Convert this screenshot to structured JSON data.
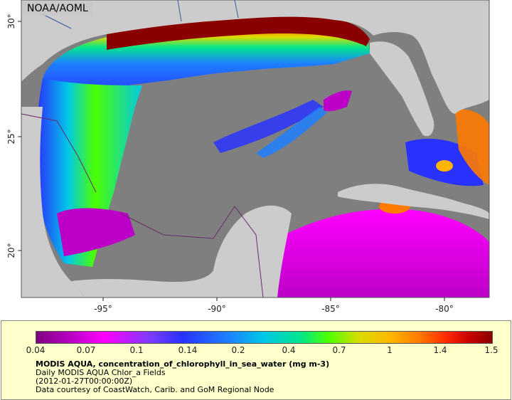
{
  "map": {
    "credit": "NOAA/AOML",
    "lon_ticks": [
      "-95°",
      "-90°",
      "-85°",
      "-80°"
    ],
    "lat_ticks": [
      "30°",
      "25°",
      "20°"
    ],
    "colors": {
      "ocean_no_data": "#7f7f7f",
      "land": "#cccccc",
      "borders": "#6a2a6a",
      "rivers": "#3a5aa0"
    }
  },
  "legend": {
    "ticks": [
      "0.04",
      "0.07",
      "0.1",
      "0.14",
      "0.2",
      "0.4",
      "0.7",
      "1",
      "1.4",
      "1.5"
    ],
    "title": "MODIS AQUA, concentration_of_chlorophyll_in_sea_water (mg m-3)",
    "line1": "Daily MODIS AQUA Chlor_a Fields",
    "line2": "(2012-01-27T00:00:00Z)",
    "line3": "Data courtesy of CoastWatch, Carib. and GoM Regional Node"
  }
}
